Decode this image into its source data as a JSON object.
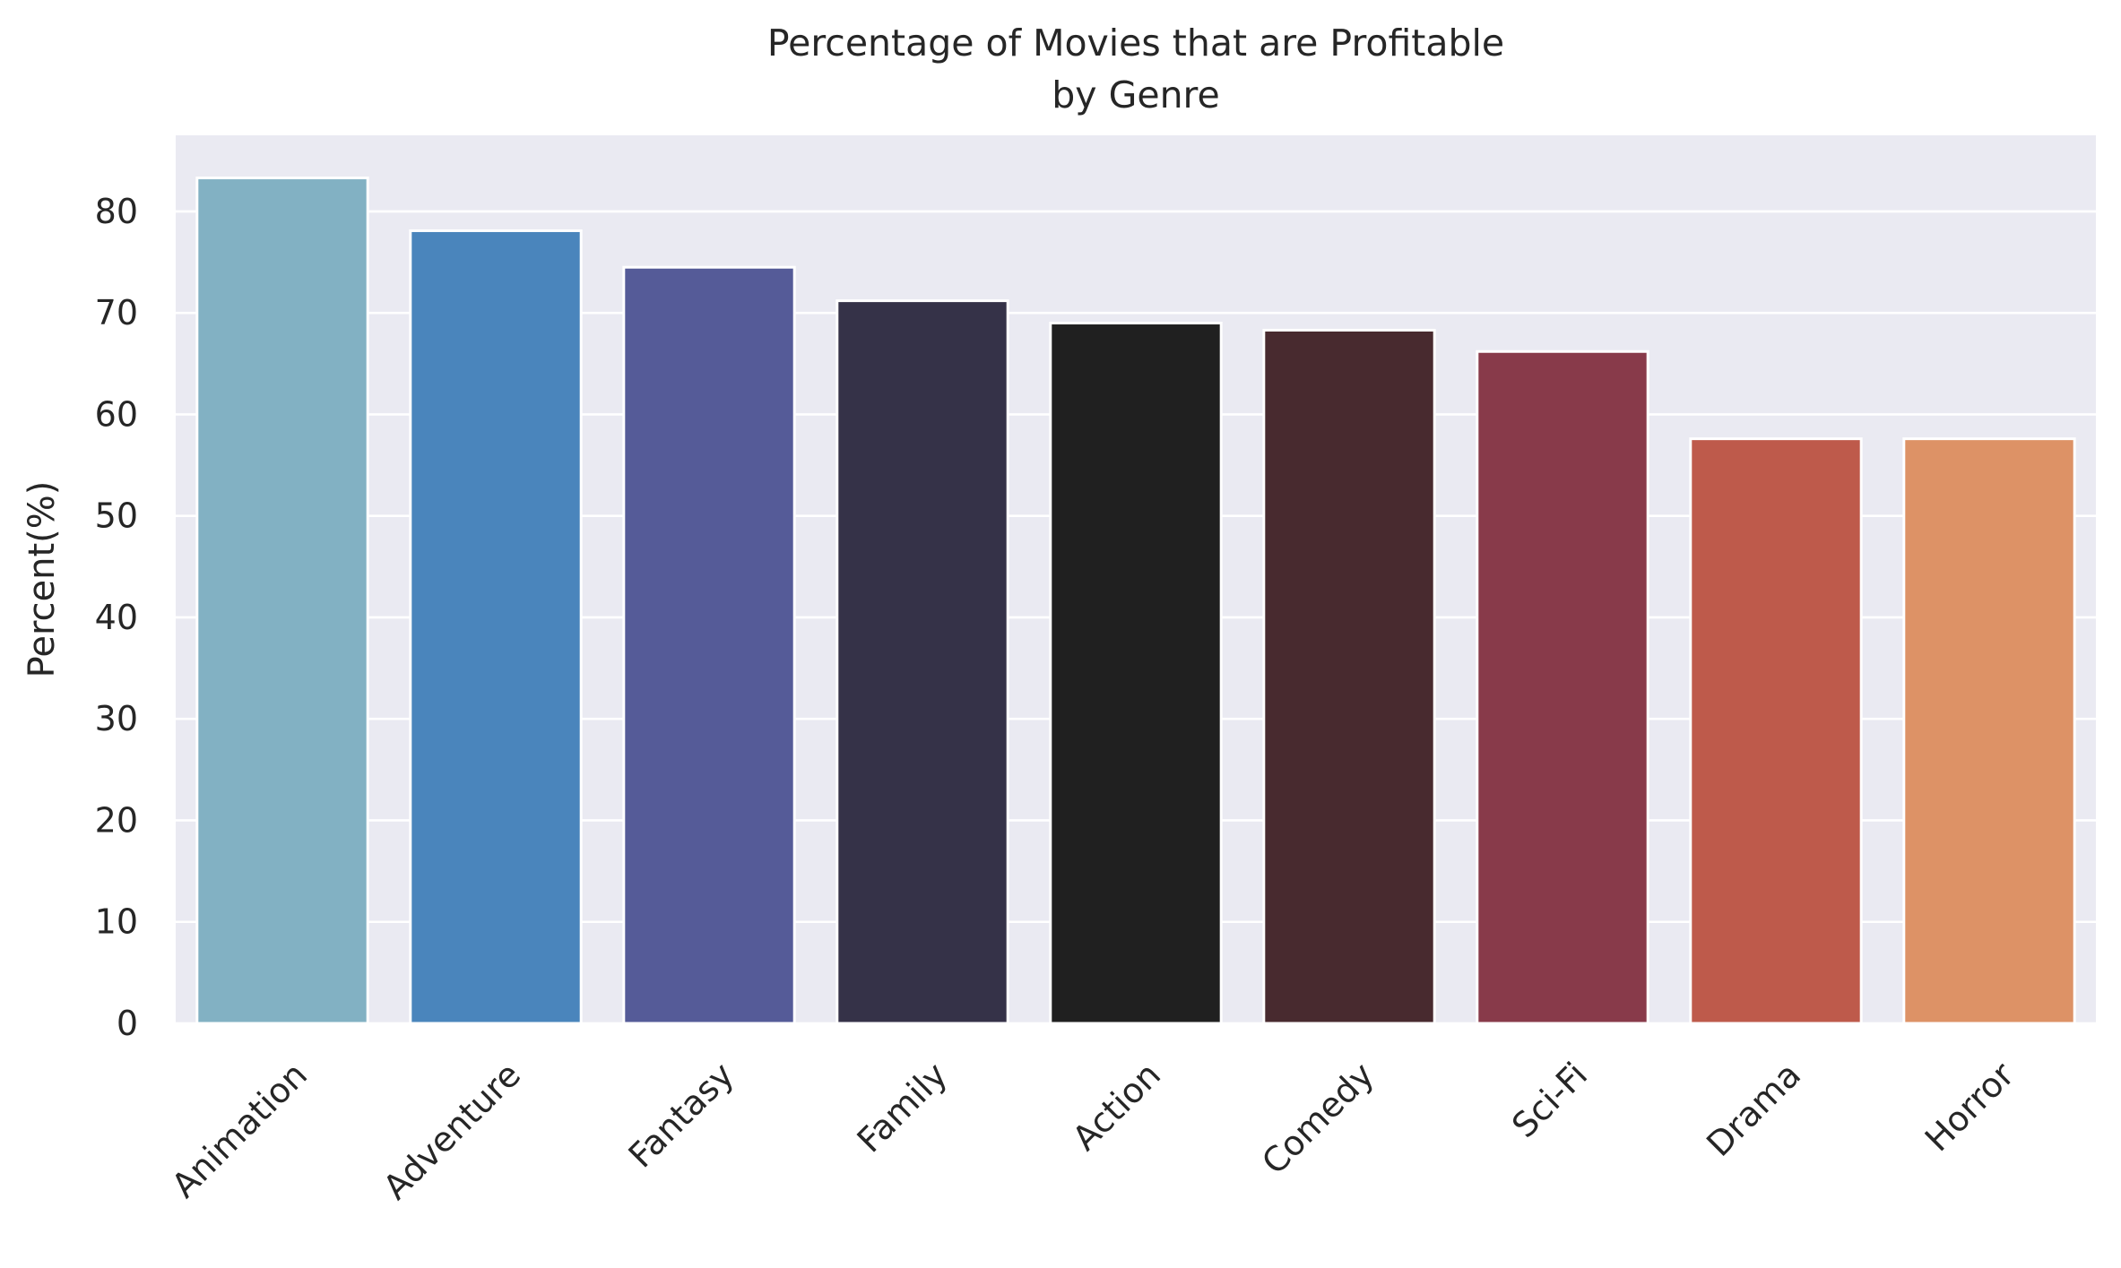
{
  "chart_data": {
    "type": "bar",
    "title": "Percentage of Movies that are Profitable",
    "subtitle": "by Genre",
    "xlabel": "",
    "ylabel": "Percent(%)",
    "ylim": [
      0,
      87.5
    ],
    "yticks": [
      0,
      10,
      20,
      30,
      40,
      50,
      60,
      70,
      80
    ],
    "grid": true,
    "legend": "none",
    "categories": [
      "Animation",
      "Adventure",
      "Fantasy",
      "Family",
      "Action",
      "Comedy",
      "Sci-Fi",
      "Drama",
      "Horror"
    ],
    "values": [
      83.3,
      78.1,
      74.5,
      71.2,
      69.0,
      68.3,
      66.2,
      57.6,
      57.6
    ],
    "colors": [
      "#82b1c3",
      "#4a85bc",
      "#555b98",
      "#353248",
      "#202020",
      "#482a2f",
      "#883a4a",
      "#be5a4b",
      "#dd9266"
    ],
    "background_color": "#eaeaf2",
    "grid_color": "#ffffff"
  }
}
